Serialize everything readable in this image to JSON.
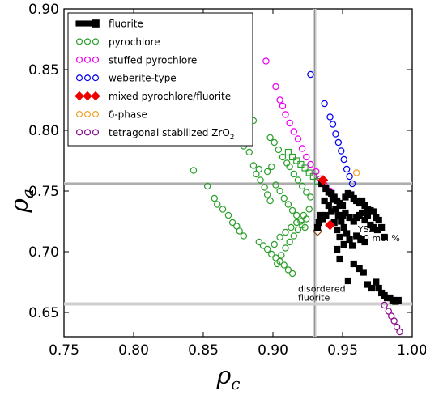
{
  "chart_data": {
    "type": "scatter",
    "xlabel": "ρ",
    "xlabel_sub": "c",
    "ylabel": "ρ",
    "ylabel_sub": "a",
    "xlim": [
      0.75,
      1.0
    ],
    "ylim": [
      0.63,
      0.9
    ],
    "xticks": [
      "0.75",
      "0.80",
      "0.85",
      "0.90",
      "0.95",
      "1.00"
    ],
    "yticks": [
      "0.65",
      "0.70",
      "0.75",
      "0.80",
      "0.85",
      "0.90"
    ],
    "legend_position": "top-left",
    "reference_lines": {
      "vertical_x": 0.93,
      "horizontal_y": [
        0.756,
        0.657
      ]
    },
    "annotations": [
      {
        "id": "ysz",
        "lines": [
          "YSZ",
          "20 mol %"
        ],
        "x": 0.961,
        "y": 0.716
      },
      {
        "id": "disordered",
        "lines": [
          "disordered",
          "fluorite"
        ],
        "x": 0.918,
        "y": 0.667
      }
    ],
    "series": [
      {
        "name": "fluorite",
        "marker": "square",
        "color": "#000000",
        "fill": true,
        "points": [
          [
            0.935,
            0.756
          ],
          [
            0.938,
            0.752
          ],
          [
            0.94,
            0.749
          ],
          [
            0.942,
            0.748
          ],
          [
            0.944,
            0.745
          ],
          [
            0.946,
            0.742
          ],
          [
            0.948,
            0.74
          ],
          [
            0.95,
            0.738
          ],
          [
            0.952,
            0.745
          ],
          [
            0.954,
            0.748
          ],
          [
            0.956,
            0.747
          ],
          [
            0.958,
            0.744
          ],
          [
            0.96,
            0.742
          ],
          [
            0.962,
            0.74
          ],
          [
            0.964,
            0.742
          ],
          [
            0.966,
            0.738
          ],
          [
            0.968,
            0.735
          ],
          [
            0.97,
            0.734
          ],
          [
            0.972,
            0.733
          ],
          [
            0.974,
            0.728
          ],
          [
            0.976,
            0.726
          ],
          [
            0.978,
            0.72
          ],
          [
            0.98,
            0.712
          ],
          [
            0.945,
            0.735
          ],
          [
            0.947,
            0.73
          ],
          [
            0.949,
            0.725
          ],
          [
            0.951,
            0.72
          ],
          [
            0.953,
            0.715
          ],
          [
            0.955,
            0.71
          ],
          [
            0.957,
            0.705
          ],
          [
            0.94,
            0.738
          ],
          [
            0.942,
            0.733
          ],
          [
            0.938,
            0.73
          ],
          [
            0.936,
            0.727
          ],
          [
            0.934,
            0.73
          ],
          [
            0.933,
            0.724
          ],
          [
            0.932,
            0.72
          ],
          [
            0.944,
            0.724
          ],
          [
            0.946,
            0.718
          ],
          [
            0.95,
            0.73
          ],
          [
            0.952,
            0.732
          ],
          [
            0.955,
            0.728
          ],
          [
            0.958,
            0.725
          ],
          [
            0.96,
            0.728
          ],
          [
            0.962,
            0.73
          ],
          [
            0.964,
            0.732
          ],
          [
            0.966,
            0.726
          ],
          [
            0.968,
            0.73
          ],
          [
            0.97,
            0.722
          ],
          [
            0.972,
            0.72
          ],
          [
            0.975,
            0.718
          ],
          [
            0.948,
            0.712
          ],
          [
            0.951,
            0.706
          ],
          [
            0.946,
            0.702
          ],
          [
            0.96,
            0.713
          ],
          [
            0.963,
            0.71
          ],
          [
            0.966,
            0.708
          ],
          [
            0.958,
            0.69
          ],
          [
            0.962,
            0.686
          ],
          [
            0.965,
            0.683
          ],
          [
            0.968,
            0.673
          ],
          [
            0.971,
            0.67
          ],
          [
            0.974,
            0.675
          ],
          [
            0.976,
            0.67
          ],
          [
            0.978,
            0.666
          ],
          [
            0.98,
            0.664
          ],
          [
            0.982,
            0.662
          ],
          [
            0.984,
            0.662
          ],
          [
            0.986,
            0.66
          ],
          [
            0.988,
            0.659
          ],
          [
            0.99,
            0.66
          ],
          [
            0.948,
            0.694
          ],
          [
            0.954,
            0.676
          ],
          [
            0.943,
            0.743
          ],
          [
            0.937,
            0.742
          ]
        ]
      },
      {
        "name": "pyrochlore",
        "marker": "circle",
        "color": "#2ca02c",
        "fill": false,
        "points": [
          [
            0.843,
            0.767
          ],
          [
            0.853,
            0.754
          ],
          [
            0.858,
            0.744
          ],
          [
            0.86,
            0.739
          ],
          [
            0.864,
            0.735
          ],
          [
            0.868,
            0.73
          ],
          [
            0.871,
            0.724
          ],
          [
            0.874,
            0.721
          ],
          [
            0.876,
            0.717
          ],
          [
            0.879,
            0.713
          ],
          [
            0.87,
            0.792
          ],
          [
            0.877,
            0.798
          ],
          [
            0.879,
            0.787
          ],
          [
            0.883,
            0.782
          ],
          [
            0.886,
            0.771
          ],
          [
            0.888,
            0.764
          ],
          [
            0.891,
            0.759
          ],
          [
            0.894,
            0.753
          ],
          [
            0.896,
            0.747
          ],
          [
            0.898,
            0.742
          ],
          [
            0.89,
            0.708
          ],
          [
            0.893,
            0.705
          ],
          [
            0.896,
            0.702
          ],
          [
            0.899,
            0.698
          ],
          [
            0.902,
            0.695
          ],
          [
            0.905,
            0.692
          ],
          [
            0.908,
            0.689
          ],
          [
            0.911,
            0.685
          ],
          [
            0.914,
            0.682
          ],
          [
            0.886,
            0.808
          ],
          [
            0.89,
            0.768
          ],
          [
            0.902,
            0.755
          ],
          [
            0.905,
            0.75
          ],
          [
            0.908,
            0.744
          ],
          [
            0.911,
            0.739
          ],
          [
            0.914,
            0.734
          ],
          [
            0.917,
            0.73
          ],
          [
            0.92,
            0.725
          ],
          [
            0.923,
            0.72
          ],
          [
            0.898,
            0.794
          ],
          [
            0.901,
            0.79
          ],
          [
            0.904,
            0.784
          ],
          [
            0.907,
            0.778
          ],
          [
            0.91,
            0.773
          ],
          [
            0.912,
            0.77
          ],
          [
            0.915,
            0.764
          ],
          [
            0.918,
            0.759
          ],
          [
            0.921,
            0.754
          ],
          [
            0.924,
            0.749
          ],
          [
            0.927,
            0.745
          ],
          [
            0.903,
            0.69
          ],
          [
            0.906,
            0.697
          ],
          [
            0.909,
            0.703
          ],
          [
            0.912,
            0.708
          ],
          [
            0.915,
            0.713
          ],
          [
            0.918,
            0.718
          ],
          [
            0.921,
            0.722
          ],
          [
            0.924,
            0.727
          ],
          [
            0.901,
            0.706
          ],
          [
            0.905,
            0.712
          ],
          [
            0.909,
            0.716
          ],
          [
            0.913,
            0.72
          ],
          [
            0.917,
            0.724
          ],
          [
            0.922,
            0.73
          ],
          [
            0.926,
            0.735
          ],
          [
            0.896,
            0.766
          ],
          [
            0.899,
            0.77
          ]
        ]
      },
      {
        "name": "stuffed pyrochlore",
        "marker": "circle",
        "color": "#ee00ee",
        "fill": false,
        "points": [
          [
            0.895,
            0.857
          ],
          [
            0.902,
            0.836
          ],
          [
            0.905,
            0.825
          ],
          [
            0.907,
            0.82
          ],
          [
            0.909,
            0.813
          ],
          [
            0.912,
            0.806
          ],
          [
            0.915,
            0.799
          ],
          [
            0.918,
            0.793
          ],
          [
            0.921,
            0.785
          ],
          [
            0.924,
            0.778
          ],
          [
            0.927,
            0.772
          ],
          [
            0.931,
            0.766
          ],
          [
            0.934,
            0.76
          ],
          [
            0.937,
            0.755
          ],
          [
            0.941,
            0.75
          ],
          [
            0.944,
            0.745
          ]
        ]
      },
      {
        "name": "weberite-type",
        "marker": "circle",
        "color": "#0000ee",
        "fill": false,
        "points": [
          [
            0.927,
            0.846
          ],
          [
            0.937,
            0.822
          ],
          [
            0.941,
            0.811
          ],
          [
            0.943,
            0.805
          ],
          [
            0.945,
            0.797
          ],
          [
            0.947,
            0.79
          ],
          [
            0.949,
            0.783
          ],
          [
            0.951,
            0.776
          ],
          [
            0.953,
            0.768
          ],
          [
            0.955,
            0.762
          ],
          [
            0.957,
            0.756
          ]
        ]
      },
      {
        "name": "mixed pyrochlore/fluorite",
        "marker": "diamond",
        "color": "#ee0000",
        "fill": true,
        "points": [
          [
            0.936,
            0.759
          ],
          [
            0.941,
            0.722
          ]
        ]
      },
      {
        "name": "δ-phase",
        "marker": "circle",
        "color": "#f0a020",
        "fill": false,
        "points": [
          [
            0.96,
            0.765
          ]
        ]
      },
      {
        "name": "tetragonal stabilized ZrO",
        "name_sub": "2",
        "marker": "circle",
        "color": "#8b0a8b",
        "fill": false,
        "points": [
          [
            0.98,
            0.656
          ],
          [
            0.983,
            0.651
          ],
          [
            0.985,
            0.647
          ],
          [
            0.987,
            0.643
          ],
          [
            0.989,
            0.638
          ],
          [
            0.991,
            0.634
          ]
        ]
      }
    ],
    "extra_markers": [
      {
        "marker": "square-open",
        "color": "#2ca02c",
        "points": [
          [
            0.911,
            0.782
          ],
          [
            0.914,
            0.778
          ],
          [
            0.917,
            0.775
          ],
          [
            0.92,
            0.772
          ],
          [
            0.923,
            0.769
          ],
          [
            0.926,
            0.765
          ],
          [
            0.929,
            0.762
          ],
          [
            0.932,
            0.758
          ]
        ]
      },
      {
        "marker": "diamond-open",
        "color": "#8b4513",
        "points": [
          [
            0.932,
            0.717
          ]
        ]
      }
    ]
  }
}
